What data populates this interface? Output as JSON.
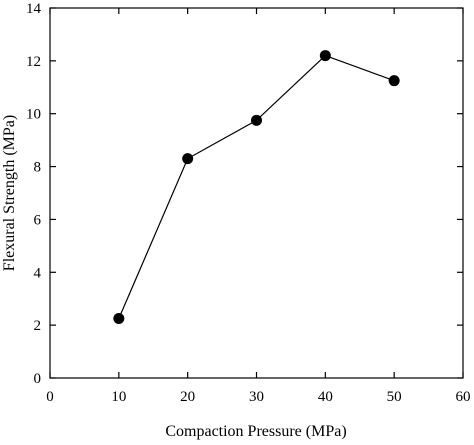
{
  "chart_data": {
    "type": "line",
    "xlabel": "Compaction Pressure (MPa)",
    "ylabel": "Flexural Strength (MPa)",
    "xlim": [
      0,
      60
    ],
    "ylim": [
      0,
      14
    ],
    "xticks": [
      0,
      10,
      20,
      30,
      40,
      50,
      60
    ],
    "yticks": [
      0,
      2,
      4,
      6,
      8,
      10,
      12,
      14
    ],
    "grid": false,
    "series": [
      {
        "x": [
          10,
          20,
          30,
          40,
          50
        ],
        "y": [
          2.25,
          8.3,
          9.75,
          12.2,
          11.25
        ],
        "marker": "filled-circle",
        "color": "#000000"
      }
    ]
  }
}
